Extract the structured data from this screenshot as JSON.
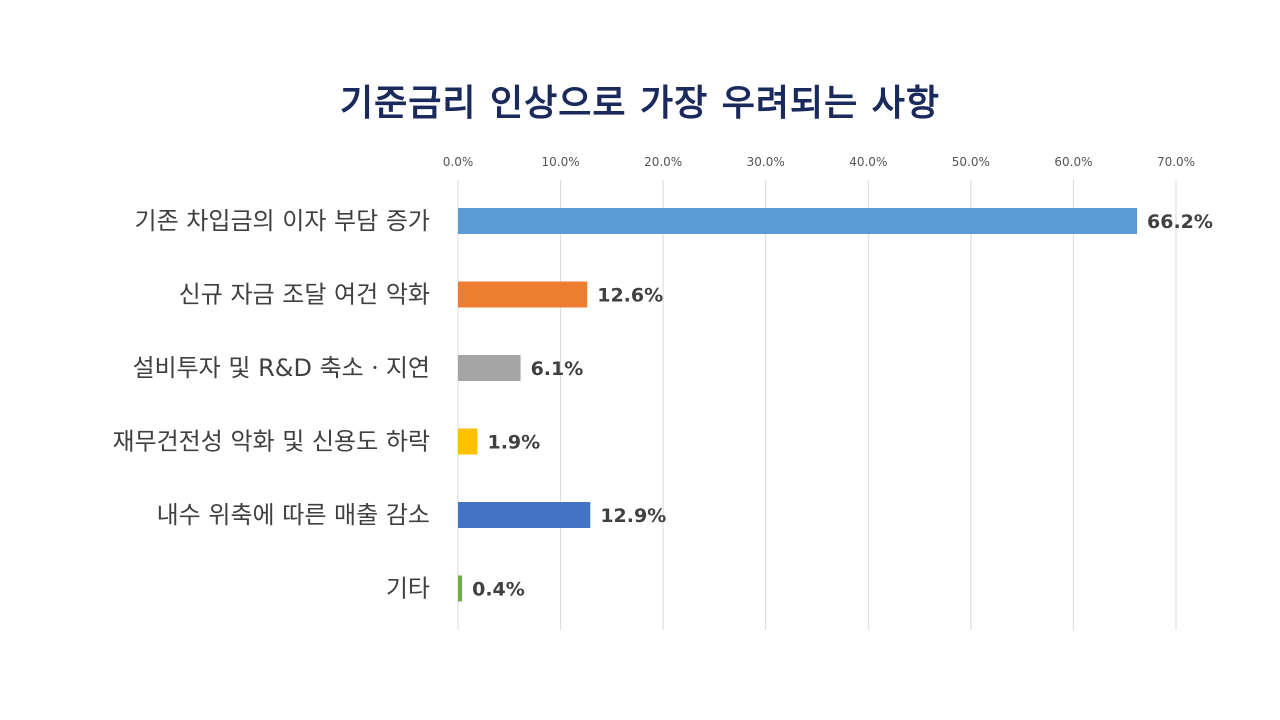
{
  "chart_data": {
    "type": "bar",
    "orientation": "horizontal",
    "title": "기준금리 인상으로 가장 우려되는 사항",
    "xlabel": "",
    "ylabel": "",
    "xlim": [
      0,
      70
    ],
    "x_ticks": [
      "0.0%",
      "10.0%",
      "20.0%",
      "30.0%",
      "40.0%",
      "50.0%",
      "60.0%",
      "70.0%"
    ],
    "x_axis_position": "top",
    "grid": true,
    "categories": [
      "기존 차입금의 이자 부담 증가",
      "신규 자금 조달 여건 악화",
      "설비투자 및 R&D 축소ㆍ지연",
      "재무건전성 악화 및 신용도 하락",
      "내수 위축에 따른 매출 감소",
      "기타"
    ],
    "values": [
      66.2,
      12.6,
      6.1,
      1.9,
      12.9,
      0.4
    ],
    "data_labels": [
      "66.2%",
      "12.6%",
      "6.1%",
      "1.9%",
      "12.9%",
      "0.4%"
    ],
    "colors": [
      "#5b9bd5",
      "#ed7d31",
      "#a5a5a5",
      "#ffc000",
      "#4472c4",
      "#70ad47"
    ]
  }
}
